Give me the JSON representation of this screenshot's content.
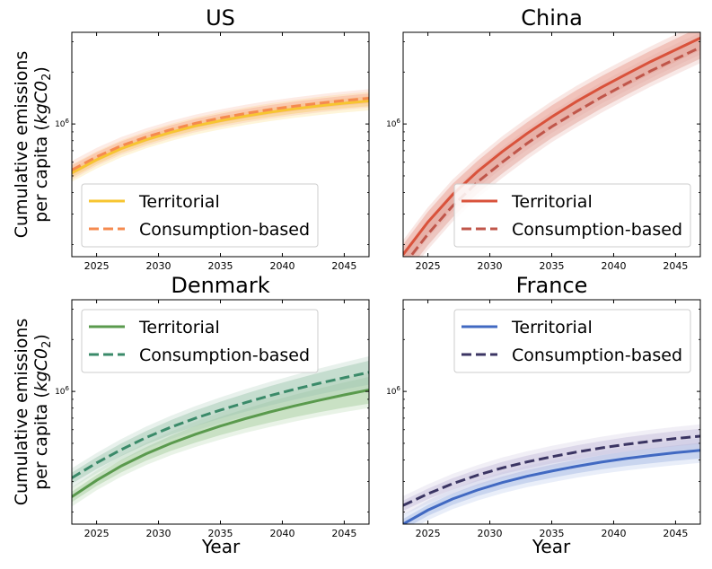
{
  "figure": {
    "ylabel_line1": "Cumulative emissions",
    "ylabel_line2": "per capita (",
    "ylabel_unit": "kgC0",
    "ylabel_sub": "2",
    "ylabel_close": ")",
    "xlabel": "Year"
  },
  "chart_data": [
    {
      "type": "line",
      "title": "US",
      "xlabel": "",
      "ylabel": "Cumulative emissions per capita (kgC02)",
      "yscale": "log",
      "xlim": [
        2023,
        2047
      ],
      "ylim": [
        170000,
        3400000
      ],
      "x_ticks": [
        2025,
        2030,
        2035,
        2040,
        2045
      ],
      "y_ticks": [
        {
          "value": 1000000,
          "label": "10",
          "exp": "6"
        }
      ],
      "legend_position": "lower-left",
      "series": [
        {
          "name": "Territorial",
          "style": "solid",
          "color": "#f7c531",
          "band_color": "#fbd86a",
          "x": [
            2023,
            2025,
            2027,
            2029,
            2031,
            2033,
            2035,
            2037,
            2039,
            2041,
            2043,
            2045,
            2047
          ],
          "y": [
            520000,
            620000,
            720000,
            810000,
            895000,
            975000,
            1045000,
            1110000,
            1170000,
            1225000,
            1275000,
            1320000,
            1360000
          ],
          "lower": [
            490000,
            585000,
            680000,
            765000,
            845000,
            920000,
            985000,
            1045000,
            1100000,
            1150000,
            1195000,
            1235000,
            1270000
          ],
          "upper": [
            550000,
            655000,
            760000,
            855000,
            945000,
            1030000,
            1105000,
            1175000,
            1240000,
            1300000,
            1355000,
            1405000,
            1450000
          ]
        },
        {
          "name": "Consumption-based",
          "style": "dashed",
          "color": "#f58a4f",
          "band_color": "#f7b196",
          "x": [
            2023,
            2025,
            2027,
            2029,
            2031,
            2033,
            2035,
            2037,
            2039,
            2041,
            2043,
            2045,
            2047
          ],
          "y": [
            540000,
            645000,
            748000,
            840000,
            928000,
            1010000,
            1082000,
            1150000,
            1212000,
            1268000,
            1320000,
            1368000,
            1410000
          ],
          "lower": [
            505000,
            605000,
            703000,
            790000,
            873000,
            950000,
            1018000,
            1080000,
            1138000,
            1190000,
            1238000,
            1282000,
            1320000
          ],
          "upper": [
            575000,
            685000,
            793000,
            890000,
            983000,
            1070000,
            1146000,
            1220000,
            1286000,
            1346000,
            1402000,
            1454000,
            1500000
          ]
        }
      ]
    },
    {
      "type": "line",
      "title": "China",
      "xlabel": "",
      "ylabel": "",
      "yscale": "log",
      "xlim": [
        2023,
        2047
      ],
      "ylim": [
        170000,
        3400000
      ],
      "x_ticks": [
        2025,
        2030,
        2035,
        2040,
        2045
      ],
      "y_ticks": [
        {
          "value": 1000000,
          "label": "10",
          "exp": "6"
        }
      ],
      "legend_position": "lower-right",
      "series": [
        {
          "name": "Territorial",
          "style": "solid",
          "color": "#d9523b",
          "band_color": "#e9a092",
          "x": [
            2023,
            2025,
            2027,
            2029,
            2031,
            2033,
            2035,
            2037,
            2039,
            2041,
            2043,
            2045,
            2047
          ],
          "y": [
            175000,
            270000,
            390000,
            530000,
            690000,
            880000,
            1100000,
            1350000,
            1630000,
            1940000,
            2300000,
            2690000,
            3150000
          ],
          "lower": [
            150000,
            230000,
            330000,
            450000,
            590000,
            750000,
            940000,
            1150000,
            1390000,
            1650000,
            1950000,
            2290000,
            2680000
          ],
          "upper": [
            200000,
            310000,
            450000,
            610000,
            800000,
            1020000,
            1280000,
            1570000,
            1890000,
            2250000,
            2660000,
            3120000,
            3650000
          ]
        },
        {
          "name": "Consumption-based",
          "style": "dashed",
          "color": "#c0564a",
          "band_color": "#e2a59c",
          "x": [
            2023,
            2025,
            2027,
            2029,
            2031,
            2033,
            2035,
            2037,
            2039,
            2041,
            2043,
            2045,
            2047
          ],
          "y": [
            150000,
            230000,
            335000,
            460000,
            600000,
            770000,
            965000,
            1180000,
            1430000,
            1710000,
            2030000,
            2380000,
            2780000
          ],
          "lower": [
            130000,
            198000,
            288000,
            395000,
            515000,
            660000,
            830000,
            1015000,
            1230000,
            1470000,
            1745000,
            2045000,
            2390000
          ],
          "upper": [
            172000,
            264000,
            385000,
            528000,
            690000,
            885000,
            1110000,
            1355000,
            1645000,
            1965000,
            2335000,
            2740000,
            3200000
          ]
        }
      ]
    },
    {
      "type": "line",
      "title": "Denmark",
      "xlabel": "Year",
      "ylabel": "Cumulative emissions per capita (kgC02)",
      "yscale": "log",
      "xlim": [
        2023,
        2047
      ],
      "ylim": [
        170000,
        3400000
      ],
      "x_ticks": [
        2025,
        2030,
        2035,
        2040,
        2045
      ],
      "y_ticks": [
        {
          "value": 1000000,
          "label": "10",
          "exp": "6"
        }
      ],
      "legend_position": "top-left",
      "series": [
        {
          "name": "Territorial",
          "style": "solid",
          "color": "#5a9a4d",
          "band_color": "#a9cfa1",
          "x": [
            2023,
            2025,
            2027,
            2029,
            2031,
            2033,
            2035,
            2037,
            2039,
            2041,
            2043,
            2045,
            2047
          ],
          "y": [
            245000,
            305000,
            370000,
            435000,
            500000,
            565000,
            630000,
            695000,
            760000,
            825000,
            890000,
            955000,
            1020000
          ],
          "lower": [
            228000,
            283000,
            340000,
            397000,
            452000,
            505000,
            558000,
            610000,
            660000,
            710000,
            758000,
            805000,
            850000
          ],
          "upper": [
            262000,
            328000,
            402000,
            476000,
            553000,
            632000,
            712000,
            793000,
            875000,
            958000,
            1042000,
            1127000,
            1215000
          ]
        },
        {
          "name": "Consumption-based",
          "style": "dashed",
          "color": "#3a8a69",
          "band_color": "#a3c9b4",
          "x": [
            2023,
            2025,
            2027,
            2029,
            2031,
            2033,
            2035,
            2037,
            2039,
            2041,
            2043,
            2045,
            2047
          ],
          "y": [
            315000,
            385000,
            460000,
            540000,
            620000,
            700000,
            780000,
            860000,
            945000,
            1030000,
            1115000,
            1200000,
            1290000
          ],
          "lower": [
            292000,
            355000,
            422000,
            492000,
            561000,
            629000,
            696000,
            762000,
            830000,
            897000,
            963000,
            1028000,
            1095000
          ],
          "upper": [
            338000,
            415000,
            500000,
            590000,
            682000,
            776000,
            872000,
            970000,
            1072000,
            1176000,
            1283000,
            1393000,
            1507000
          ]
        }
      ]
    },
    {
      "type": "line",
      "title": "France",
      "xlabel": "Year",
      "ylabel": "",
      "yscale": "log",
      "xlim": [
        2023,
        2047
      ],
      "ylim": [
        170000,
        3400000
      ],
      "x_ticks": [
        2025,
        2030,
        2035,
        2040,
        2045
      ],
      "y_ticks": [
        {
          "value": 1000000,
          "label": "10",
          "exp": "6"
        }
      ],
      "legend_position": "top-right",
      "series": [
        {
          "name": "Territorial",
          "style": "solid",
          "color": "#4169c2",
          "band_color": "#a9bde6",
          "x": [
            2023,
            2025,
            2027,
            2029,
            2031,
            2033,
            2035,
            2037,
            2039,
            2041,
            2043,
            2045,
            2047
          ],
          "y": [
            170000,
            205000,
            238000,
            268000,
            296000,
            322000,
            345000,
            368000,
            389000,
            408000,
            425000,
            441000,
            455000
          ],
          "lower": [
            158000,
            190000,
            220000,
            247000,
            272000,
            295000,
            315000,
            335000,
            353000,
            369000,
            383000,
            396000,
            408000
          ],
          "upper": [
            182000,
            220000,
            256000,
            290000,
            321000,
            350000,
            376000,
            402000,
            426000,
            448000,
            468000,
            487000,
            504000
          ]
        },
        {
          "name": "Consumption-based",
          "style": "dashed",
          "color": "#3b3563",
          "band_color": "#c7bfdd",
          "x": [
            2023,
            2025,
            2027,
            2029,
            2031,
            2033,
            2035,
            2037,
            2039,
            2041,
            2043,
            2045,
            2047
          ],
          "y": [
            218000,
            255000,
            292000,
            327000,
            360000,
            390000,
            418000,
            445000,
            470000,
            493000,
            514000,
            533000,
            550000
          ],
          "lower": [
            203000,
            237000,
            270000,
            301000,
            331000,
            357000,
            382000,
            405000,
            427000,
            447000,
            465000,
            481000,
            495000
          ],
          "upper": [
            233000,
            273000,
            314000,
            353000,
            390000,
            424000,
            456000,
            486000,
            515000,
            542000,
            566000,
            588000,
            608000
          ]
        }
      ]
    }
  ]
}
